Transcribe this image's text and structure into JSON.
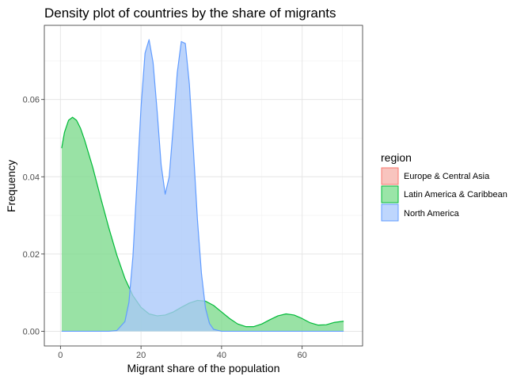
{
  "chart_data": {
    "type": "area",
    "title": "Density plot of countries by the share of migrants",
    "xlabel": "Migrant share of the population",
    "ylabel": "Frequency",
    "xlim": [
      -4,
      75
    ],
    "ylim": [
      -0.0038,
      0.0792
    ],
    "x_ticks": [
      0,
      20,
      40,
      60
    ],
    "y_ticks": [
      0.0,
      0.02,
      0.04,
      0.06
    ],
    "x_tick_labels": [
      "0",
      "20",
      "40",
      "60"
    ],
    "y_tick_labels": [
      "0.00",
      "0.02",
      "0.04",
      "0.06"
    ],
    "grid": true,
    "legend": {
      "title": "region",
      "position": "right",
      "items": [
        "Europe & Central Asia",
        "Latin America & Caribbean",
        "North America"
      ]
    },
    "series": [
      {
        "name": "Latin America & Caribbean",
        "fill": "#7CDA8C",
        "stroke": "#00BA38",
        "points": [
          [
            0.3,
            0.0474
          ],
          [
            1,
            0.0515
          ],
          [
            2,
            0.0546
          ],
          [
            3,
            0.0554
          ],
          [
            4,
            0.0546
          ],
          [
            5,
            0.0525
          ],
          [
            6,
            0.0495
          ],
          [
            8,
            0.0425
          ],
          [
            10,
            0.0345
          ],
          [
            12,
            0.0268
          ],
          [
            14,
            0.0197
          ],
          [
            16,
            0.0137
          ],
          [
            18,
            0.0092
          ],
          [
            20,
            0.0062
          ],
          [
            22,
            0.0045
          ],
          [
            24,
            0.004
          ],
          [
            26,
            0.0042
          ],
          [
            28,
            0.005
          ],
          [
            30,
            0.0062
          ],
          [
            32,
            0.0073
          ],
          [
            34,
            0.008
          ],
          [
            36,
            0.0078
          ],
          [
            38,
            0.0067
          ],
          [
            40,
            0.005
          ],
          [
            42,
            0.0033
          ],
          [
            44,
            0.0019
          ],
          [
            46,
            0.0012
          ],
          [
            48,
            0.0012
          ],
          [
            50,
            0.0019
          ],
          [
            52,
            0.003
          ],
          [
            54,
            0.004
          ],
          [
            56,
            0.0045
          ],
          [
            58,
            0.0042
          ],
          [
            60,
            0.0033
          ],
          [
            62,
            0.0022
          ],
          [
            64,
            0.0016
          ],
          [
            66,
            0.0017
          ],
          [
            68,
            0.0023
          ],
          [
            70.3,
            0.0026
          ]
        ]
      },
      {
        "name": "North America",
        "fill": "#A9C8FA",
        "stroke": "#619CFF",
        "points": [
          [
            0.3,
            0.0
          ],
          [
            12,
            0.0
          ],
          [
            14,
            0.0002
          ],
          [
            16,
            0.0025
          ],
          [
            17,
            0.0075
          ],
          [
            18,
            0.0195
          ],
          [
            19,
            0.0385
          ],
          [
            20,
            0.058
          ],
          [
            21,
            0.072
          ],
          [
            22,
            0.0755
          ],
          [
            23,
            0.0695
          ],
          [
            24,
            0.057
          ],
          [
            25,
            0.043
          ],
          [
            26,
            0.0355
          ],
          [
            27,
            0.04
          ],
          [
            28,
            0.053
          ],
          [
            29,
            0.067
          ],
          [
            30,
            0.075
          ],
          [
            31,
            0.0745
          ],
          [
            32,
            0.064
          ],
          [
            33,
            0.047
          ],
          [
            34,
            0.029
          ],
          [
            35,
            0.015
          ],
          [
            36,
            0.006
          ],
          [
            37,
            0.002
          ],
          [
            38,
            0.0005
          ],
          [
            40,
            0.0
          ],
          [
            70.3,
            0.0
          ]
        ]
      }
    ]
  }
}
